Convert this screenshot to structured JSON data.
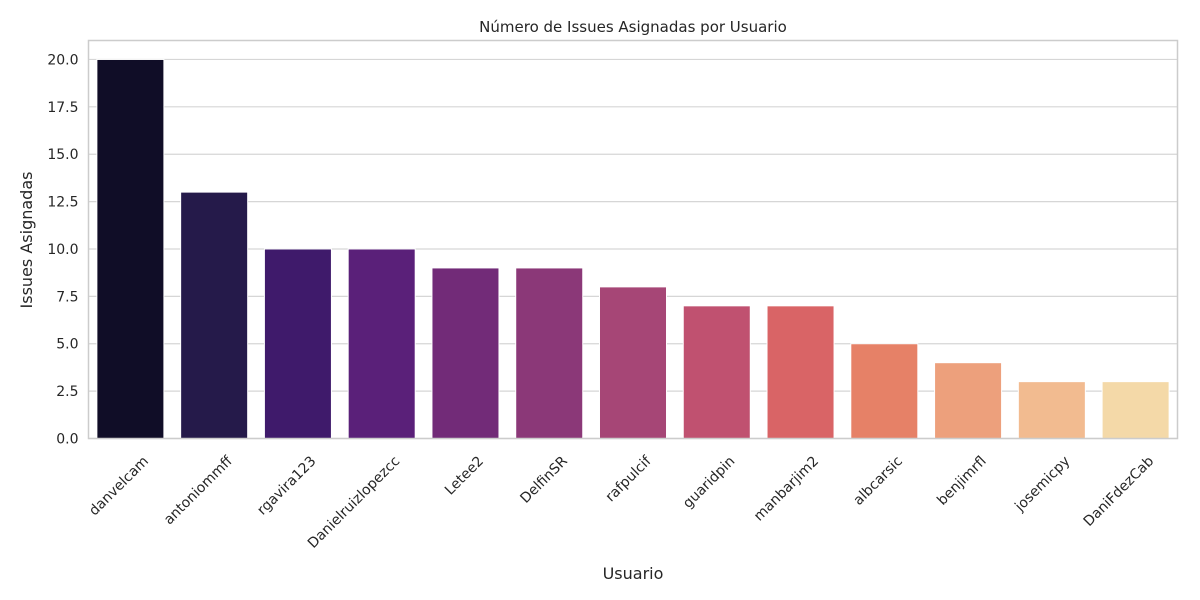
{
  "chart_data": {
    "type": "bar",
    "title": "Número de Issues Asignadas por Usuario",
    "xlabel": "Usuario",
    "ylabel": "Issues Asignadas",
    "ylim": [
      0,
      21
    ],
    "yticks": [
      "0.0",
      "2.5",
      "5.0",
      "7.5",
      "10.0",
      "12.5",
      "15.0",
      "17.5",
      "20.0"
    ],
    "ytick_values": [
      0,
      2.5,
      5,
      7.5,
      10,
      12.5,
      15,
      17.5,
      20
    ],
    "grid": "horizontal",
    "categories": [
      "danvelcam",
      "antoniommff",
      "rgavira123",
      "Danielruizlopezcc",
      "Letee2",
      "DelfinSR",
      "rafpulcif",
      "guaridpin",
      "manbarjim2",
      "albcarsic",
      "benjimrfl",
      "josemicpy",
      "DaniFdezCab"
    ],
    "values": [
      20,
      13,
      10,
      10,
      9,
      9,
      8,
      7,
      7,
      5,
      4,
      3,
      3
    ],
    "colors": [
      "#100d27",
      "#251a4a",
      "#3f1a6b",
      "#5a2079",
      "#722b78",
      "#8b3878",
      "#a64676",
      "#c05170",
      "#d96466",
      "#e68167",
      "#eda07c",
      "#f2bb90",
      "#f4d9a8"
    ]
  }
}
